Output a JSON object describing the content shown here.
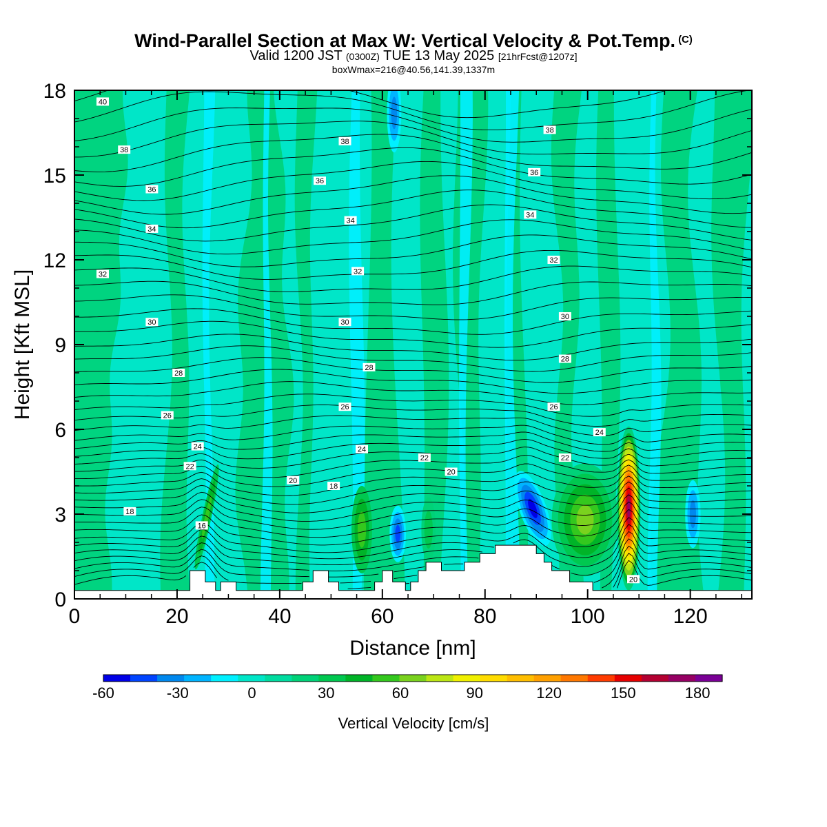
{
  "header": {
    "title": "Wind-Parallel Section at Max W: Vertical Velocity & Pot.Temp.",
    "copyright": "(C)",
    "valid_a": "Valid 1200 JST",
    "valid_utc": "(0300Z)",
    "valid_b": "TUE 13 May 2025",
    "forecast": "[21hrFcst@1207z]",
    "boxinfo": "boxWmax=216@40.56,141.39,1337m"
  },
  "colors": {
    "palette": [
      "#0000e6",
      "#0044ff",
      "#0088ee",
      "#00b4ff",
      "#00f0ff",
      "#00e6c8",
      "#00dca0",
      "#00d278",
      "#00c850",
      "#00b428",
      "#34c81e",
      "#7ad21e",
      "#bce614",
      "#f0f000",
      "#ffdc00",
      "#ffbe00",
      "#ffa000",
      "#ff7800",
      "#ff3c00",
      "#e60000",
      "#b40032",
      "#960064",
      "#7a0096"
    ],
    "background_field": "#00e6c8",
    "terrain": "#ffffff"
  },
  "chart_data": {
    "type": "heatmap",
    "xlabel": "Distance [nm]",
    "ylabel": "Height [Kft MSL]",
    "xlim": [
      0,
      132
    ],
    "ylim": [
      0,
      18
    ],
    "xticks": [
      "0",
      "20",
      "40",
      "60",
      "80",
      "100",
      "120"
    ],
    "yticks": [
      "0",
      "3",
      "6",
      "9",
      "12",
      "15",
      "18"
    ],
    "colorbar": {
      "label": "Vertical Velocity [cm/s]",
      "range": [
        -60,
        190
      ],
      "ticks": [
        "-60",
        "-30",
        "0",
        "30",
        "60",
        "90",
        "120",
        "150",
        "180"
      ]
    },
    "features": [
      {
        "kind": "updraft",
        "x": 108,
        "z_min": 0.3,
        "z_max": 6.0,
        "w_max": 216
      },
      {
        "kind": "downdraft",
        "x": 89,
        "z_min": 1.9,
        "z_max": 4.6,
        "w_min": -55
      },
      {
        "kind": "downdraft",
        "x": 63,
        "z_min": 1.4,
        "z_max": 3.2,
        "w_min": -40
      },
      {
        "kind": "downdraft",
        "x": 62,
        "z_min": 16.0,
        "z_max": 18.0,
        "w_min": -30
      }
    ],
    "contour_labels": [
      {
        "text": "40",
        "x": 5.5,
        "z": 17.6
      },
      {
        "text": "38",
        "x": 9.7,
        "z": 15.9
      },
      {
        "text": "38",
        "x": 52.7,
        "z": 16.2
      },
      {
        "text": "38",
        "x": 92.6,
        "z": 16.6
      },
      {
        "text": "36",
        "x": 15.1,
        "z": 14.5
      },
      {
        "text": "36",
        "x": 47.8,
        "z": 14.8
      },
      {
        "text": "36",
        "x": 89.6,
        "z": 15.1
      },
      {
        "text": "34",
        "x": 15.1,
        "z": 13.1
      },
      {
        "text": "34",
        "x": 53.8,
        "z": 13.4
      },
      {
        "text": "34",
        "x": 88.8,
        "z": 13.6
      },
      {
        "text": "32",
        "x": 5.5,
        "z": 11.5
      },
      {
        "text": "32",
        "x": 55.2,
        "z": 11.6
      },
      {
        "text": "32",
        "x": 93.4,
        "z": 12.0
      },
      {
        "text": "30",
        "x": 15.1,
        "z": 9.8
      },
      {
        "text": "30",
        "x": 52.7,
        "z": 9.8
      },
      {
        "text": "30",
        "x": 95.6,
        "z": 10.0
      },
      {
        "text": "28",
        "x": 20.3,
        "z": 8.0
      },
      {
        "text": "28",
        "x": 57.4,
        "z": 8.2
      },
      {
        "text": "28",
        "x": 95.6,
        "z": 8.5
      },
      {
        "text": "26",
        "x": 18.1,
        "z": 6.5
      },
      {
        "text": "26",
        "x": 52.7,
        "z": 6.8
      },
      {
        "text": "26",
        "x": 93.4,
        "z": 6.8
      },
      {
        "text": "24",
        "x": 24.0,
        "z": 5.4
      },
      {
        "text": "24",
        "x": 56.0,
        "z": 5.3
      },
      {
        "text": "24",
        "x": 102.3,
        "z": 5.9
      },
      {
        "text": "22",
        "x": 22.5,
        "z": 4.7
      },
      {
        "text": "22",
        "x": 68.2,
        "z": 5.0
      },
      {
        "text": "22",
        "x": 95.6,
        "z": 5.0
      },
      {
        "text": "20",
        "x": 42.6,
        "z": 4.2
      },
      {
        "text": "20",
        "x": 73.4,
        "z": 4.5
      },
      {
        "text": "20",
        "x": 108.9,
        "z": 0.7
      },
      {
        "text": "18",
        "x": 10.8,
        "z": 3.1
      },
      {
        "text": "18",
        "x": 50.5,
        "z": 4.0
      },
      {
        "text": "16",
        "x": 24.8,
        "z": 2.6
      }
    ],
    "terrain": [
      [
        0,
        0.3
      ],
      [
        22.5,
        0.3
      ],
      [
        22.5,
        1.0
      ],
      [
        25.5,
        1.0
      ],
      [
        25.5,
        0.6
      ],
      [
        27.5,
        0.6
      ],
      [
        27.5,
        0.3
      ],
      [
        28.5,
        0.3
      ],
      [
        28.5,
        0.6
      ],
      [
        31.5,
        0.6
      ],
      [
        31.5,
        0.3
      ],
      [
        44.5,
        0.3
      ],
      [
        44.5,
        0.6
      ],
      [
        46.5,
        0.6
      ],
      [
        46.5,
        1.0
      ],
      [
        49.5,
        1.0
      ],
      [
        49.5,
        0.6
      ],
      [
        51.5,
        0.6
      ],
      [
        51.5,
        0.3
      ],
      [
        58.5,
        0.3
      ],
      [
        58.5,
        0.6
      ],
      [
        60,
        0.6
      ],
      [
        60,
        1.0
      ],
      [
        62,
        1.0
      ],
      [
        62,
        0.6
      ],
      [
        64.5,
        0.6
      ],
      [
        64.5,
        0.3
      ],
      [
        65.5,
        0.3
      ],
      [
        65.5,
        0.6
      ],
      [
        67,
        0.6
      ],
      [
        67,
        1.0
      ],
      [
        68.5,
        1.0
      ],
      [
        68.5,
        1.3
      ],
      [
        71.5,
        1.3
      ],
      [
        71.5,
        1.0
      ],
      [
        76,
        1.0
      ],
      [
        76,
        1.3
      ],
      [
        79,
        1.3
      ],
      [
        79,
        1.6
      ],
      [
        82,
        1.6
      ],
      [
        82,
        1.9
      ],
      [
        90,
        1.9
      ],
      [
        90,
        1.6
      ],
      [
        91.5,
        1.6
      ],
      [
        91.5,
        1.3
      ],
      [
        93,
        1.3
      ],
      [
        93,
        1.0
      ],
      [
        96.5,
        1.0
      ],
      [
        96.5,
        0.6
      ],
      [
        101,
        0.6
      ],
      [
        101,
        0.3
      ],
      [
        132,
        0.3
      ]
    ]
  }
}
